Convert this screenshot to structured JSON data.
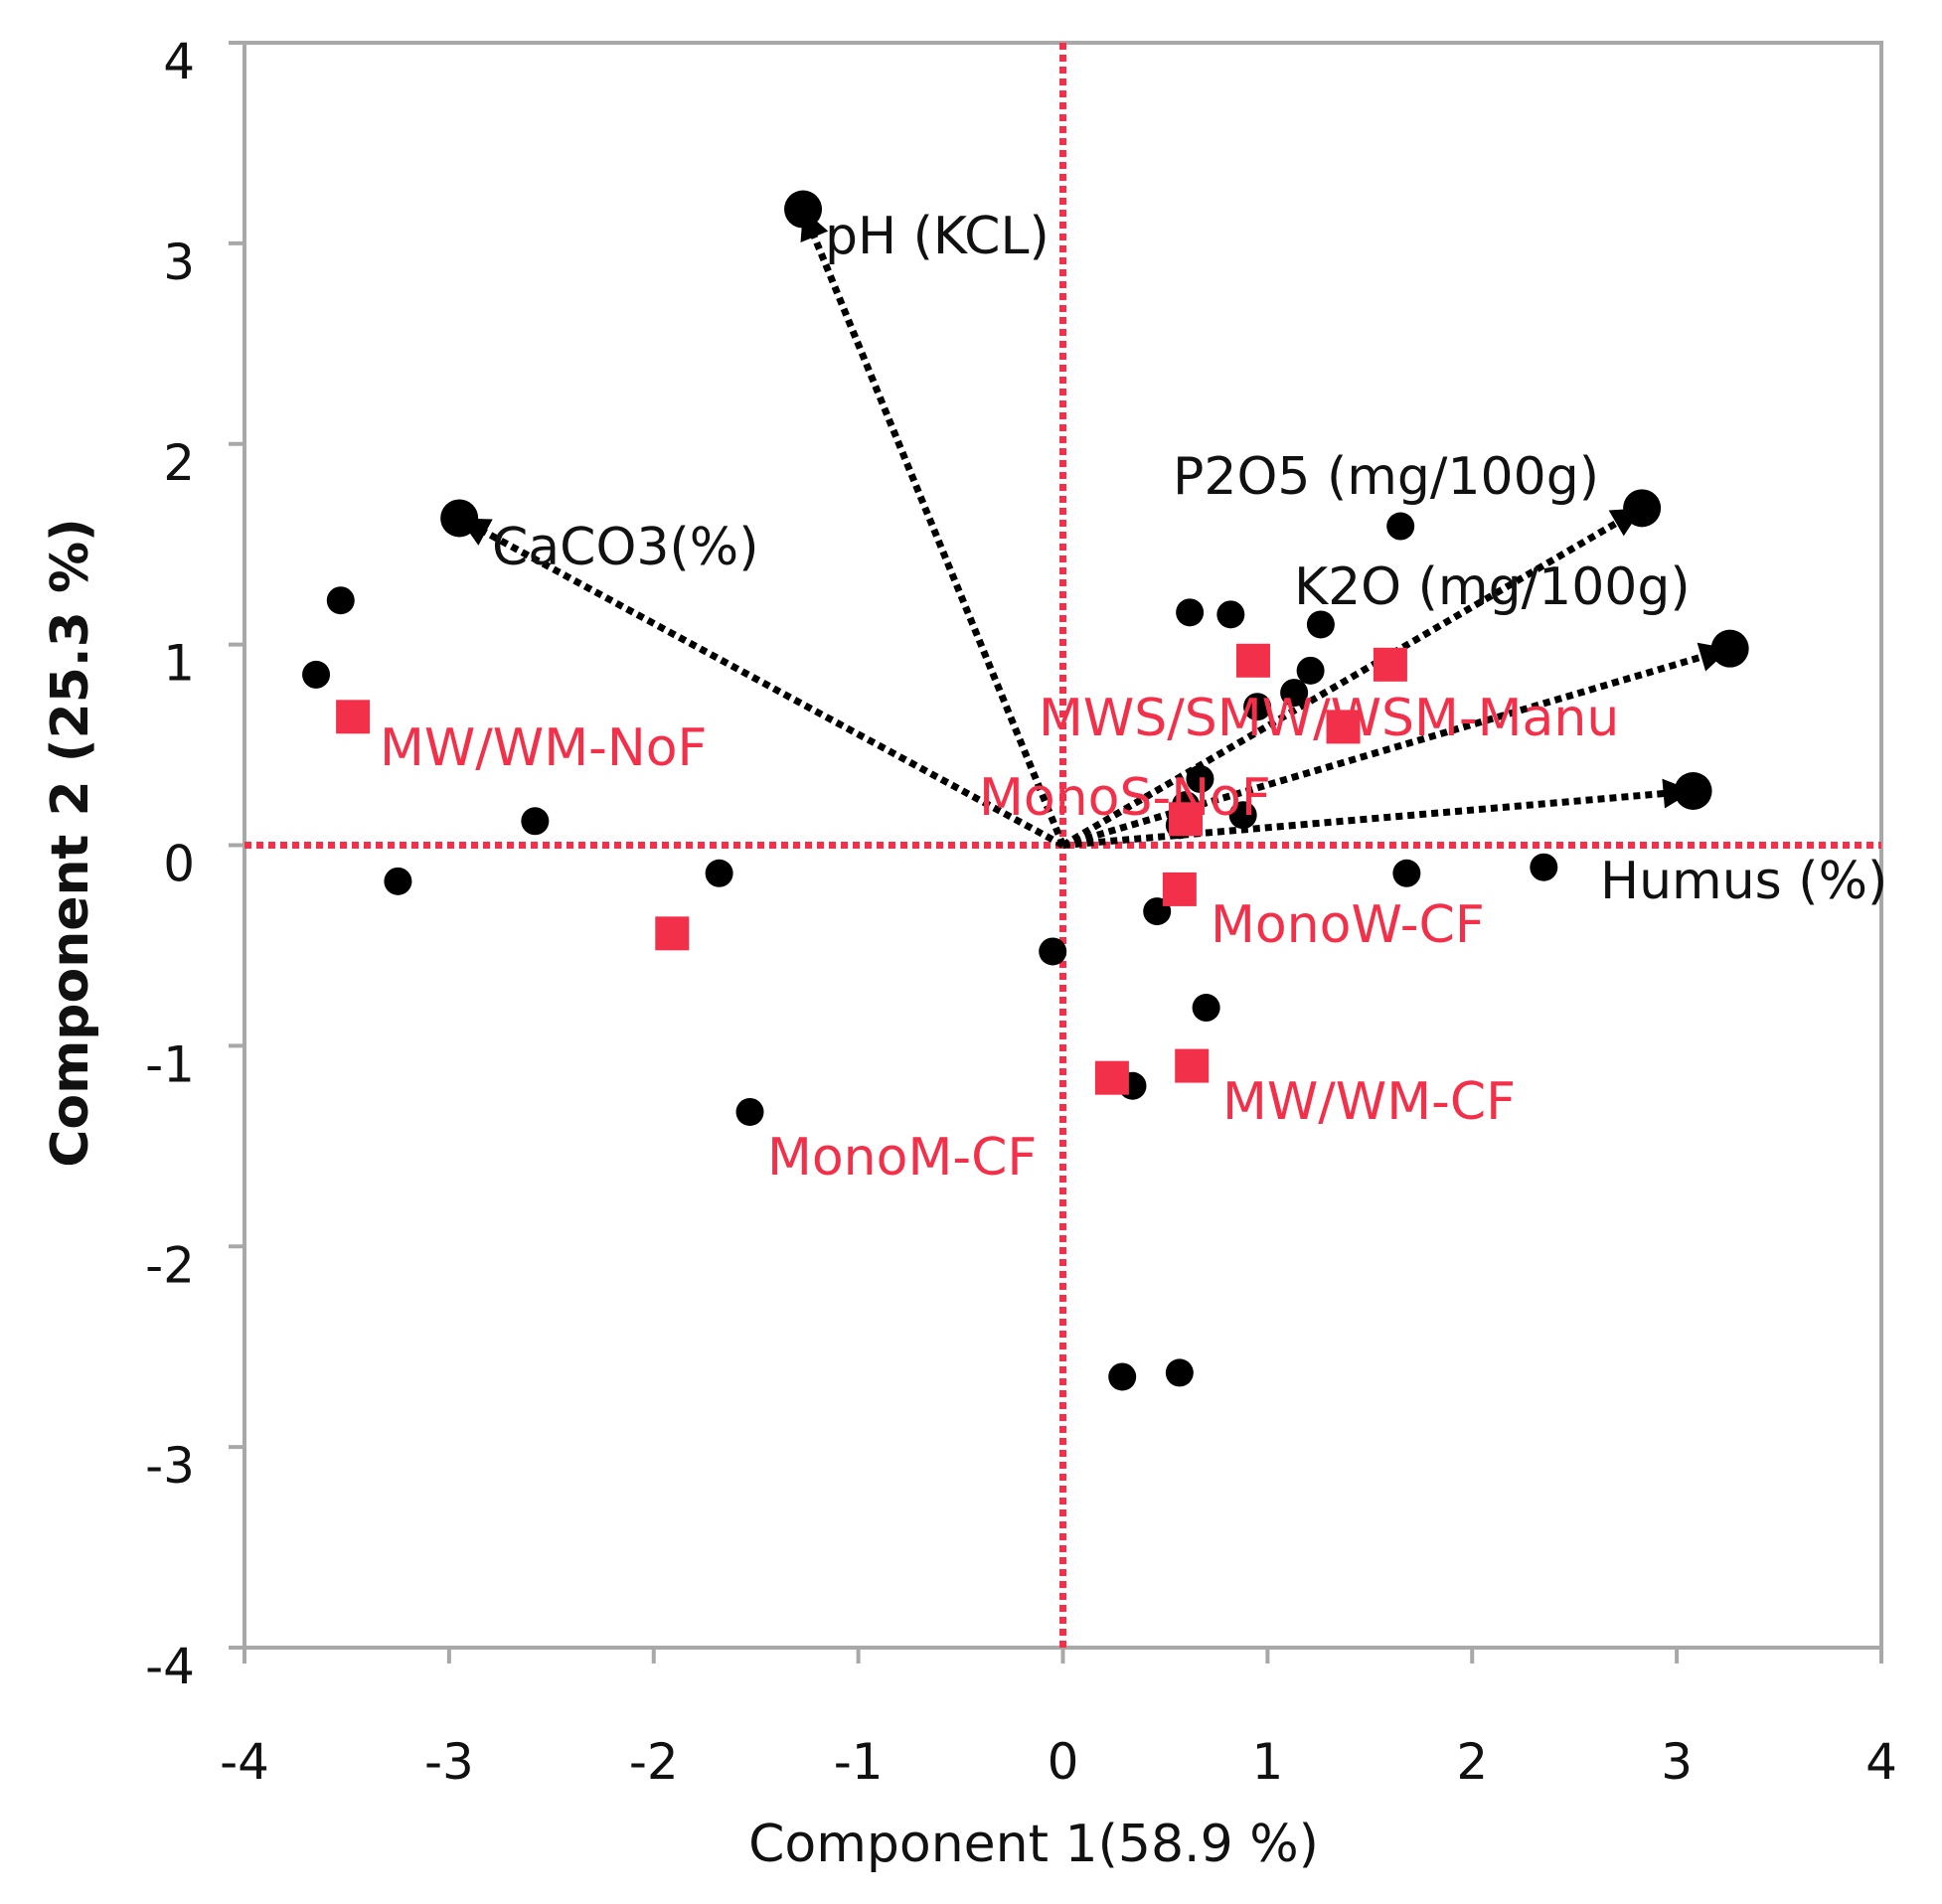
{
  "chart_data": {
    "type": "scatter",
    "title": "",
    "xlabel": "Component 1(58.9 %)",
    "ylabel": "Component 2  (25.3 %)",
    "xlim": [
      -4,
      4
    ],
    "ylim": [
      -4,
      4
    ],
    "xticks": [
      -4,
      -3,
      -2,
      -1,
      0,
      1,
      2,
      3,
      4
    ],
    "yticks": [
      -4,
      -3,
      -2,
      -1,
      0,
      1,
      2,
      3,
      4
    ],
    "grid": false,
    "colors": {
      "points": "#000000",
      "treatments": "#f2304a",
      "reference_lines": "#f2304a",
      "frame": "#a8a8a8"
    },
    "reference_lines": {
      "x": 0,
      "y": 0
    },
    "observations": [
      [
        -3.53,
        1.22
      ],
      [
        -3.65,
        0.85
      ],
      [
        -3.25,
        -0.18
      ],
      [
        -2.58,
        0.12
      ],
      [
        -1.68,
        -0.14
      ],
      [
        -1.53,
        -1.33
      ],
      [
        -0.05,
        -0.53
      ],
      [
        0.29,
        -2.65
      ],
      [
        0.57,
        -2.63
      ],
      [
        0.62,
        1.16
      ],
      [
        0.82,
        1.15
      ],
      [
        1.26,
        1.1
      ],
      [
        1.21,
        0.87
      ],
      [
        1.13,
        0.76
      ],
      [
        0.95,
        0.69
      ],
      [
        1.65,
        1.59
      ],
      [
        0.67,
        0.33
      ],
      [
        0.6,
        0.2
      ],
      [
        0.57,
        0.1
      ],
      [
        0.46,
        -0.33
      ],
      [
        0.7,
        -0.81
      ],
      [
        0.34,
        -1.2
      ],
      [
        1.68,
        -0.14
      ],
      [
        2.35,
        -0.11
      ],
      [
        0.88,
        0.15
      ]
    ],
    "loadings": [
      {
        "name": "pH (KCL)",
        "x": -1.27,
        "y": 3.17
      },
      {
        "name": "CaCO3(%)",
        "x": -2.95,
        "y": 1.63
      },
      {
        "name": "P2O5 (mg/100g)",
        "x": 2.83,
        "y": 1.68
      },
      {
        "name": "K2O (mg/100g)",
        "x": 3.26,
        "y": 0.98
      },
      {
        "name": "Humus (%)",
        "x": 3.08,
        "y": 0.27
      }
    ],
    "treatments": [
      {
        "name": "MW/WM-NoF",
        "x": -3.47,
        "y": 0.64
      },
      {
        "name": "",
        "x": -1.91,
        "y": -0.44
      },
      {
        "name": "MWS/SMW/WSM-Manu",
        "x": 0.93,
        "y": 0.92
      },
      {
        "name": "",
        "x": 1.6,
        "y": 0.9
      },
      {
        "name": "",
        "x": 1.37,
        "y": 0.59
      },
      {
        "name": "MonoS-NoF",
        "x": 0.6,
        "y": 0.13
      },
      {
        "name": "MonoW-CF",
        "x": 0.57,
        "y": -0.22
      },
      {
        "name": "MW/WM-CF",
        "x": 0.63,
        "y": -1.1
      },
      {
        "name": "MonoM-CF",
        "x": 0.24,
        "y": -1.16
      }
    ]
  }
}
